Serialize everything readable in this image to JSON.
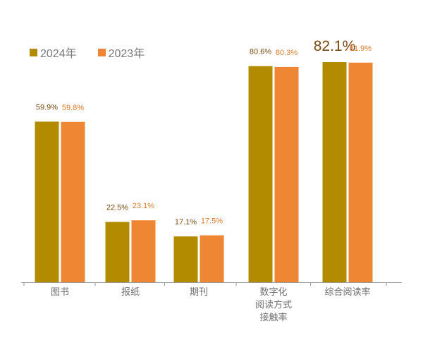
{
  "chart_data": {
    "type": "bar",
    "title": "",
    "xlabel": "",
    "ylabel": "",
    "ylim": [
      0,
      100
    ],
    "grid": false,
    "legend_position": "top-left",
    "categories": [
      "图书",
      "报纸",
      "期刊",
      "数字化\n阅读方式\n接触率",
      "综合阅读率"
    ],
    "series": [
      {
        "name": "2024年",
        "color": "#b38b00",
        "label_color": "#7a4a12",
        "values": [
          59.9,
          22.5,
          17.1,
          80.6,
          82.1
        ],
        "labels": [
          "59.9%",
          "22.5%",
          "17.1%",
          "80.6%",
          "82.1%"
        ]
      },
      {
        "name": "2023年",
        "color": "#ee8633",
        "label_color": "#e07a2a",
        "values": [
          59.8,
          23.1,
          17.5,
          80.3,
          81.9
        ],
        "labels": [
          "59.8%",
          "23.1%",
          "17.5%",
          "80.3%",
          "81.9%"
        ]
      }
    ],
    "highlight_label": {
      "series": 0,
      "index": 4
    }
  }
}
